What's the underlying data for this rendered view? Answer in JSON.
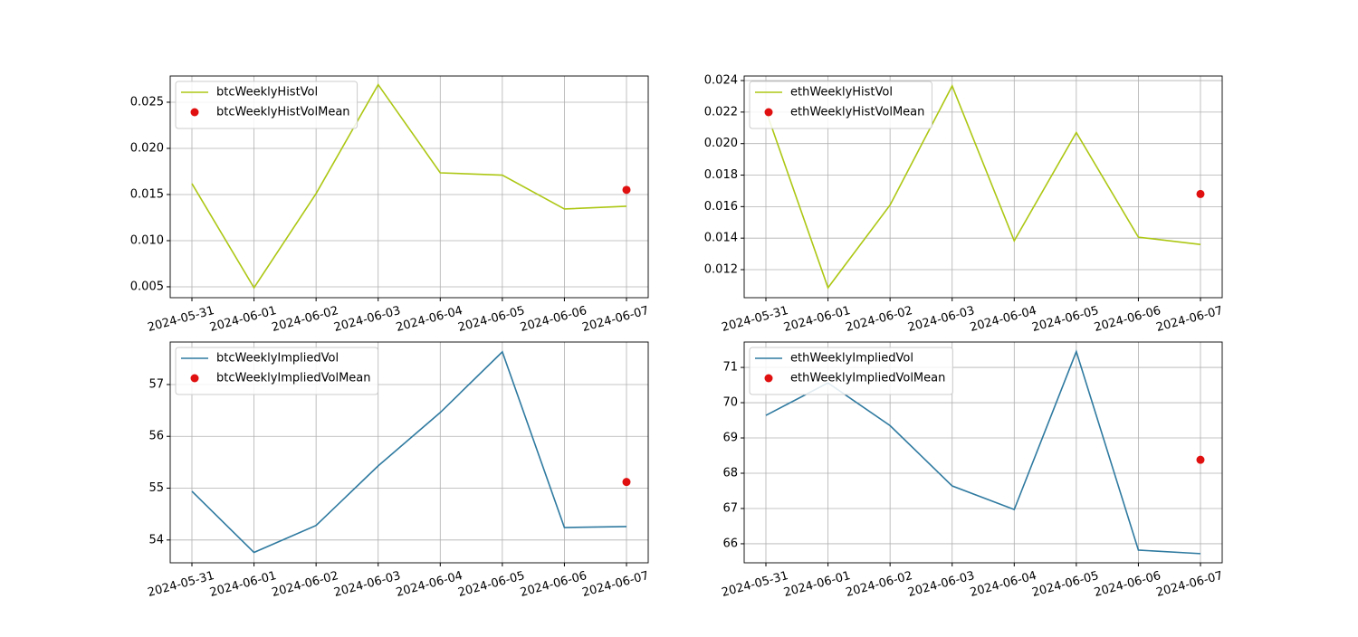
{
  "chart_data": [
    {
      "type": "line",
      "x": [
        "2024-05-31",
        "2024-06-01",
        "2024-06-02",
        "2024-06-03",
        "2024-06-04",
        "2024-06-05",
        "2024-06-06",
        "2024-06-07"
      ],
      "series": [
        {
          "name": "btcWeeklyHistVol",
          "color": "#adc714",
          "values": [
            0.01618,
            0.0049,
            0.0151,
            0.0269,
            0.01735,
            0.0171,
            0.01343,
            0.01373
          ]
        },
        {
          "name": "btcWeeklyHistVolMean",
          "color": "#e01010",
          "type": "scatter",
          "values": [
            null,
            null,
            null,
            null,
            null,
            null,
            null,
            0.0155
          ]
        }
      ],
      "ylim": [
        0.00382,
        0.02784
      ],
      "yticks": [
        0.005,
        {
          "value": 0.01,
          "label": "0.010"
        },
        0.015,
        {
          "value": 0.02,
          "label": "0.020"
        },
        0.025
      ],
      "grid": true,
      "legend": "upper left"
    },
    {
      "type": "line",
      "x": [
        "2024-05-31",
        "2024-06-01",
        "2024-06-02",
        "2024-06-03",
        "2024-06-04",
        "2024-06-05",
        "2024-06-06",
        "2024-06-07"
      ],
      "series": [
        {
          "name": "ethWeeklyHistVol",
          "color": "#adc714",
          "values": [
            0.0221,
            0.01085,
            0.0161,
            0.02366,
            0.01383,
            0.0207,
            0.01406,
            0.0136
          ]
        },
        {
          "name": "ethWeeklyHistVolMean",
          "color": "#e01010",
          "type": "scatter",
          "values": [
            null,
            null,
            null,
            null,
            null,
            null,
            null,
            0.0168
          ]
        }
      ],
      "ylim": [
        0.01022,
        0.02429
      ],
      "yticks": [
        0.012,
        0.014,
        0.016,
        0.018,
        {
          "value": 0.02,
          "label": "0.020"
        },
        0.022,
        0.024
      ],
      "grid": true,
      "legend": "upper left"
    },
    {
      "type": "line",
      "x": [
        "2024-05-31",
        "2024-06-01",
        "2024-06-02",
        "2024-06-03",
        "2024-06-04",
        "2024-06-05",
        "2024-06-06",
        "2024-06-07"
      ],
      "series": [
        {
          "name": "btcWeeklyImpliedVol",
          "color": "#2f7aa0",
          "values": [
            54.94,
            53.76,
            54.28,
            55.43,
            56.46,
            57.63,
            54.24,
            54.26
          ]
        },
        {
          "name": "btcWeeklyImpliedVolMean",
          "color": "#e01010",
          "type": "scatter",
          "values": [
            null,
            null,
            null,
            null,
            null,
            null,
            null,
            55.12
          ]
        }
      ],
      "ylim": [
        53.56,
        57.82
      ],
      "yticks": [
        54,
        55,
        56,
        57
      ],
      "grid": true,
      "legend": "upper left"
    },
    {
      "type": "line",
      "x": [
        "2024-05-31",
        "2024-06-01",
        "2024-06-02",
        "2024-06-03",
        "2024-06-04",
        "2024-06-05",
        "2024-06-06",
        "2024-06-07"
      ],
      "series": [
        {
          "name": "ethWeeklyImpliedVol",
          "color": "#2f7aa0",
          "values": [
            69.64,
            70.56,
            69.35,
            67.64,
            66.97,
            71.45,
            65.82,
            65.72
          ]
        },
        {
          "name": "ethWeeklyImpliedVolMean",
          "color": "#e01010",
          "type": "scatter",
          "values": [
            null,
            null,
            null,
            null,
            null,
            null,
            null,
            68.38
          ]
        }
      ],
      "ylim": [
        65.46,
        71.72
      ],
      "yticks": [
        66,
        67,
        68,
        69,
        70,
        71
      ],
      "grid": true,
      "legend": "upper left"
    }
  ]
}
